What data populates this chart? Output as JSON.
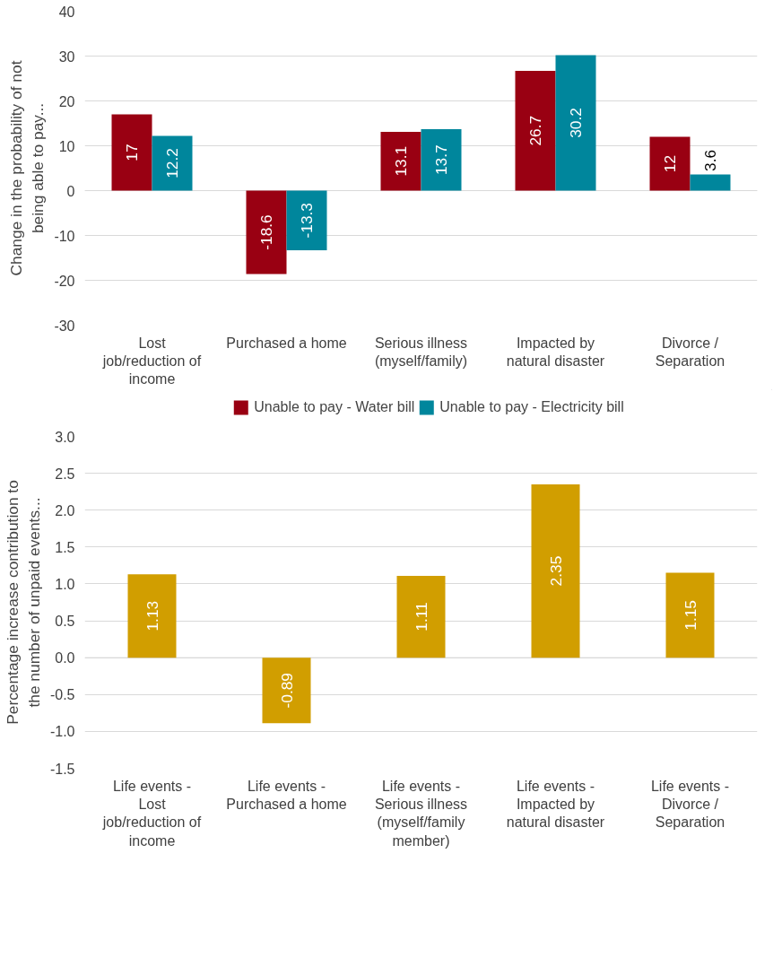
{
  "chart_data": [
    {
      "type": "bar",
      "ylabel": "Change in the probability of not being able to pay...",
      "categories": [
        "Lost job/reduction of income",
        "Purchased a home",
        "Serious illness (myself/family)",
        "Impacted by natural disaster",
        "Divorce / Separation"
      ],
      "series": [
        {
          "name": "Unable to pay - Water bill",
          "color": "#990012",
          "values": [
            17,
            -18.6,
            13.1,
            26.7,
            12
          ]
        },
        {
          "name": "Unable to pay - Electricity bill",
          "color": "#00869c",
          "values": [
            12.2,
            -13.3,
            13.7,
            30.2,
            3.6
          ]
        }
      ],
      "ylim": [
        -30,
        40
      ],
      "yticks": [
        -30,
        -20,
        -10,
        0,
        10,
        20,
        30,
        40
      ],
      "grid": "y",
      "legend": "bottom",
      "data_labels": true
    },
    {
      "type": "bar",
      "ylabel": "Percentage increase contribution to the number of unpaid events...",
      "categories": [
        "Life events - Lost job/reduction of income",
        "Life events - Purchased a home",
        "Life events - Serious illness (myself/family member)",
        "Life events - Impacted by natural disaster",
        "Life events - Divorce / Separation"
      ],
      "series": [
        {
          "color": "#d19e00",
          "values": [
            1.13,
            -0.89,
            1.11,
            2.35,
            1.15
          ]
        }
      ],
      "ylim": [
        -1.5,
        3.0
      ],
      "yticks": [
        -1.5,
        {
          "value": -1.0,
          "label": "-1.0"
        },
        -0.5,
        {
          "value": 0.0,
          "label": "0.0"
        },
        0.5,
        {
          "value": 1.0,
          "label": "1.0"
        },
        1.5,
        {
          "value": 2.0,
          "label": "2.0"
        },
        2.5,
        {
          "value": 3.0,
          "label": "3.0"
        }
      ],
      "grid": "y",
      "legend": false,
      "data_labels": true
    }
  ]
}
